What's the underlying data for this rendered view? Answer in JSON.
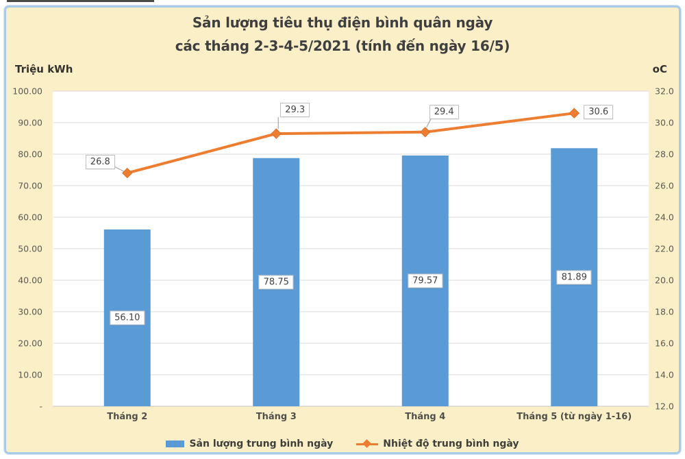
{
  "title": {
    "line1": "Sản lượng tiêu thụ điện bình quân ngày",
    "line2": "các tháng 2-3-4-5/2021 (tính đến ngày 16/5)"
  },
  "axes": {
    "left_unit": "Triệu kWh",
    "right_unit": "oC",
    "left_ticks": [
      "100.00",
      "90.00",
      "80.00",
      "70.00",
      "60.00",
      "50.00",
      "40.00",
      "30.00",
      "20.00",
      "10.00",
      "-"
    ],
    "right_ticks": [
      "32.0",
      "30.0",
      "28.0",
      "26.0",
      "24.0",
      "22.0",
      "20.0",
      "18.0",
      "16.0",
      "14.0",
      "12.0"
    ]
  },
  "chart_data": {
    "type": "bar",
    "subtype": "combo-bar-line-dual-axis",
    "title": "Sản lượng tiêu thụ điện bình quân ngày các tháng 2-3-4-5/2021 (tính đến ngày 16/5)",
    "categories": [
      "Tháng 2",
      "Tháng 3",
      "Tháng 4",
      "Tháng 5 (từ ngày 1-16)"
    ],
    "series": [
      {
        "name": "Sản lượng trung bình ngày",
        "type": "bar",
        "axis": "left",
        "color": "#5b9bd5",
        "values": [
          56.1,
          78.75,
          79.57,
          81.89
        ],
        "labels": [
          "56.10",
          "78.75",
          "79.57",
          "81.89"
        ]
      },
      {
        "name": "Nhiệt độ trung bình ngày",
        "type": "line",
        "axis": "right",
        "color": "#ed7d31",
        "values": [
          26.8,
          29.3,
          29.4,
          30.6
        ],
        "labels": [
          "26.8",
          "29.3",
          "29.4",
          "30.6"
        ]
      }
    ],
    "left_axis": {
      "label": "Triệu kWh",
      "min": 0,
      "max": 100,
      "step": 10
    },
    "right_axis": {
      "label": "oC",
      "min": 12,
      "max": 32,
      "step": 2
    },
    "grid": true,
    "legend_position": "bottom"
  },
  "colors": {
    "background": "#fbefc8",
    "frame_border": "#a9cbe8",
    "plot_background": "#ffffff",
    "gridline": "#d9d9d9",
    "baseline": "#c6c6c6",
    "bar": "#5b9bd5",
    "line": "#ed7d31",
    "callout_border": "#bfbfbf",
    "callout_text": "#404040",
    "leader": "#a6a6a6"
  }
}
